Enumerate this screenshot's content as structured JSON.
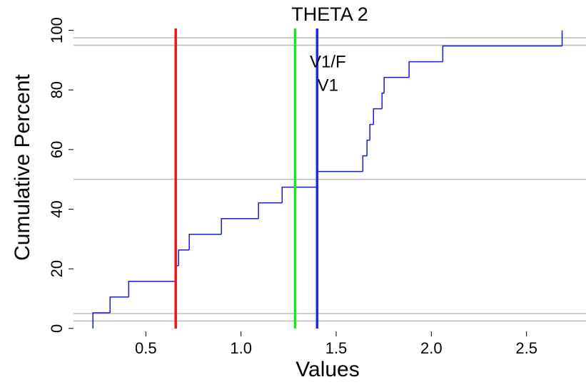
{
  "chart_data": {
    "type": "step",
    "title": "THETA 2",
    "xlabel": "Values",
    "ylabel": "Cumulative Percent",
    "x": [
      0.222,
      0.312,
      0.41,
      0.657,
      0.672,
      0.728,
      0.897,
      1.092,
      1.216,
      1.4,
      1.64,
      1.662,
      1.677,
      1.696,
      1.741,
      1.752,
      1.883,
      2.06,
      2.687
    ],
    "values": [
      5.26,
      10.53,
      15.79,
      21.05,
      26.32,
      31.58,
      36.84,
      42.11,
      47.37,
      52.63,
      57.89,
      63.16,
      68.42,
      73.68,
      78.95,
      84.21,
      89.47,
      94.74,
      100
    ],
    "color": "#1a1ad0",
    "xlim": [
      0.12,
      2.79
    ],
    "ylim": [
      -1,
      103
    ],
    "xticks": [
      0.5,
      {
        "value": 1.0,
        "label": "1.0"
      },
      1.5,
      {
        "value": 2.0,
        "label": "2.0"
      },
      2.5
    ],
    "yticks": [
      0,
      20,
      40,
      60,
      80,
      100
    ],
    "hlines": [
      2.5,
      5,
      50,
      95,
      97.5
    ],
    "hline_color": "#bbbbbb",
    "vlines": [
      {
        "value": 0.657,
        "color": "#e8181a"
      },
      {
        "value": 1.284,
        "color": "#1ee61e"
      },
      {
        "value": 1.4,
        "color": "#1a2be0"
      }
    ],
    "annotations": [
      "V1/F",
      "V1"
    ],
    "grid": false
  }
}
